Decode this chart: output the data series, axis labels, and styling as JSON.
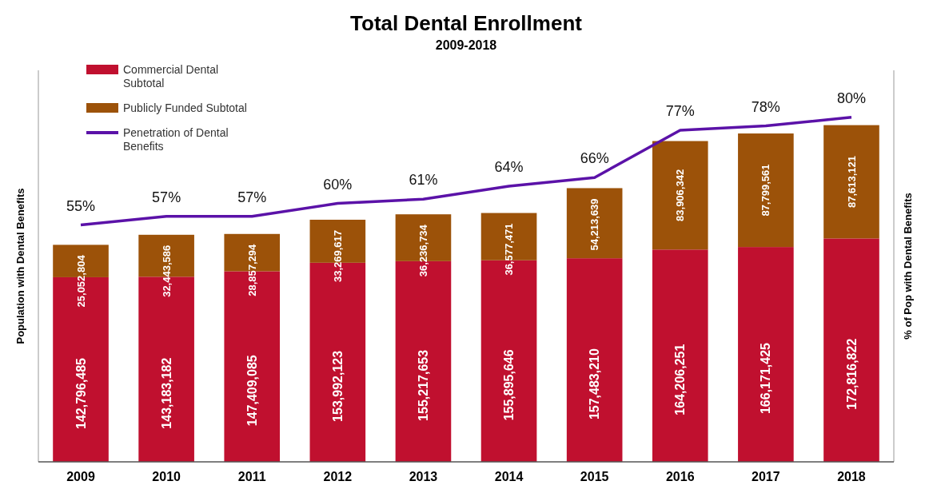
{
  "chart_data": {
    "type": "bar",
    "title": "Total Dental Enrollment",
    "subtitle": "2009-2018",
    "ylabel": "Population with Dental Benefits",
    "y2label": "% of Pop with Dental Benefits",
    "categories": [
      "2009",
      "2010",
      "2011",
      "2012",
      "2013",
      "2014",
      "2015",
      "2016",
      "2017",
      "2018"
    ],
    "stacked": true,
    "legend": "top left",
    "tick_labels": "x",
    "series": [
      {
        "name": "Commercial Dental Subtotal",
        "color": "#c0102f",
        "values": [
          142796485,
          143183182,
          147409085,
          153992123,
          155217653,
          155895646,
          157483210,
          164206251,
          166171425,
          172816822
        ],
        "value_labels": [
          "142,796,485",
          "143,183,182",
          "147,409,085",
          "153,992,123",
          "155,217,653",
          "155,895,646",
          "157,483,210",
          "164,206,251",
          "166,171,425",
          "172,816,822"
        ]
      },
      {
        "name": "Publicly Funded Subtotal",
        "color": "#9c5209",
        "values": [
          25052804,
          32443586,
          28857294,
          33269617,
          36236734,
          36577471,
          54213639,
          83906342,
          87799561,
          87613121
        ],
        "value_labels": [
          "25,052,804",
          "32,443,586",
          "28,857,294",
          "33,269,617",
          "36,236,734",
          "36,577,471",
          "54,213,639",
          "83,906,342",
          "87,799,561",
          "87,613,121"
        ]
      },
      {
        "name": "Penetration of Dental Benefits",
        "type": "line",
        "axis": "y2",
        "color": "#5b12a8",
        "line_style": "solid",
        "marker": "none",
        "values": [
          55,
          57,
          57,
          60,
          61,
          64,
          66,
          77,
          78,
          80
        ],
        "value_labels": [
          "55%",
          "57%",
          "57%",
          "60%",
          "61%",
          "64%",
          "66%",
          "77%",
          "78%",
          "80%"
        ]
      }
    ]
  }
}
